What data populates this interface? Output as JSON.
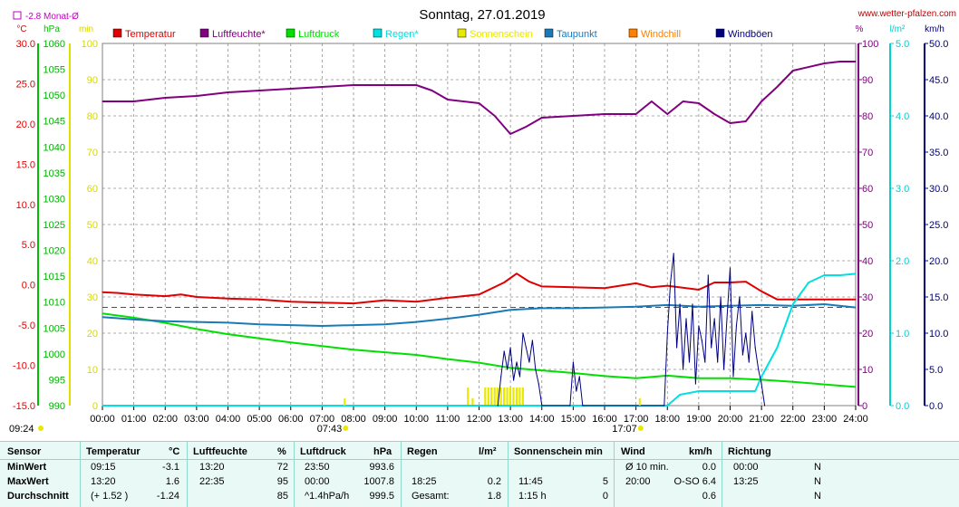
{
  "title": "Sonntag, 27.01.2019",
  "website": "www.wetter-pfalzen.com",
  "month_avg_label": "-2.8 Monat-Ø",
  "chart_data": {
    "type": "line",
    "x_range": [
      "00:00",
      "24:00"
    ],
    "x_ticks": [
      "00:00",
      "01:00",
      "02:00",
      "03:00",
      "04:00",
      "05:00",
      "06:00",
      "07:00",
      "08:00",
      "09:00",
      "10:00",
      "11:00",
      "12:00",
      "13:00",
      "14:00",
      "15:00",
      "16:00",
      "17:00",
      "18:00",
      "19:00",
      "20:00",
      "21:00",
      "22:00",
      "23:00",
      "24:00"
    ],
    "axes": {
      "temp": {
        "unit": "°C",
        "range": [
          -15,
          30
        ],
        "ticks": [
          "30.0",
          "25.0",
          "20.0",
          "15.0",
          "10.0",
          "5.0",
          "0.0",
          "-5.0",
          "-10.0",
          "-15.0"
        ],
        "color": "#e00000"
      },
      "pressure": {
        "unit": "hPa",
        "range": [
          990,
          1060
        ],
        "ticks": [
          "1060",
          "1055",
          "1050",
          "1045",
          "1040",
          "1035",
          "1030",
          "1025",
          "1020",
          "1015",
          "1010",
          "1005",
          "1000",
          "995",
          "990"
        ],
        "color": "#00c000"
      },
      "minutes": {
        "unit": "min",
        "range": [
          0,
          100
        ],
        "ticks": [
          "100",
          "90",
          "80",
          "70",
          "60",
          "50",
          "40",
          "30",
          "20",
          "10",
          "0"
        ],
        "color": "#e0e000"
      },
      "humidity": {
        "unit": "%",
        "range": [
          0,
          100
        ],
        "ticks": [
          "100",
          "90",
          "80",
          "70",
          "60",
          "50",
          "40",
          "30",
          "20",
          "10",
          "0"
        ],
        "color": "#800080"
      },
      "rain": {
        "unit": "l/m²",
        "range": [
          0,
          5
        ],
        "ticks": [
          "5.0",
          "4.0",
          "3.0",
          "2.0",
          "1.0",
          "0.0"
        ],
        "color": "#00e0e0"
      },
      "wind": {
        "unit": "km/h",
        "range": [
          0,
          50
        ],
        "ticks": [
          "50.0",
          "45.0",
          "40.0",
          "35.0",
          "30.0",
          "25.0",
          "20.0",
          "15.0",
          "10.0",
          "5.0",
          "0.0"
        ],
        "color": "#000080"
      }
    },
    "legend": [
      {
        "name": "Temperatur",
        "color": "#e00000"
      },
      {
        "name": "Luftfeuchte*",
        "color": "#800080"
      },
      {
        "name": "Luftdruck",
        "color": "#00e000"
      },
      {
        "name": "Regen*",
        "color": "#00e0e0"
      },
      {
        "name": "Sonnenschein",
        "color": "#e8e800"
      },
      {
        "name": "Taupunkt",
        "color": "#1a7ab8"
      },
      {
        "name": "Windchill",
        "color": "#ff8000"
      },
      {
        "name": "Windböen",
        "color": "#000080"
      }
    ],
    "month_avg_temp": -2.8,
    "series": [
      {
        "name": "Temperatur",
        "axis": "temp",
        "color": "#e00000",
        "x": [
          0,
          0.5,
          1,
          2,
          2.5,
          3,
          4,
          5,
          6,
          7,
          8,
          9,
          10,
          11,
          12,
          12.8,
          13.2,
          13.6,
          14,
          15,
          16,
          17,
          17.5,
          18,
          19,
          19.5,
          20,
          20.5,
          21,
          21.5,
          22,
          23,
          24
        ],
        "y": [
          -0.9,
          -1.0,
          -1.2,
          -1.4,
          -1.2,
          -1.5,
          -1.7,
          -1.8,
          -2.1,
          -2.2,
          -2.3,
          -1.9,
          -2.1,
          -1.6,
          -1.2,
          0.3,
          1.4,
          0.4,
          -0.2,
          -0.3,
          -0.4,
          0.2,
          -0.3,
          -0.1,
          -0.6,
          0.3,
          0.3,
          0.4,
          -0.8,
          -1.8,
          -1.8,
          -1.8,
          -1.8
        ]
      },
      {
        "name": "Luftfeuchte*",
        "axis": "humidity",
        "color": "#800080",
        "x": [
          0,
          1,
          2,
          3,
          4,
          5,
          6,
          7,
          8,
          9,
          10,
          10.5,
          11,
          12,
          12.5,
          13,
          13.5,
          14,
          15,
          16,
          17,
          17.5,
          18,
          18.5,
          19,
          19.5,
          20,
          20.5,
          21,
          21.5,
          22,
          23,
          23.5,
          24
        ],
        "y": [
          84,
          84,
          85,
          85.5,
          86.5,
          87,
          87.5,
          88,
          88.5,
          88.5,
          88.5,
          87,
          84.5,
          83.5,
          80,
          75,
          77,
          79.5,
          80,
          80.5,
          80.5,
          84,
          80.5,
          84,
          83.5,
          80.5,
          78,
          78.5,
          84,
          88,
          92.5,
          94.5,
          95,
          95
        ]
      },
      {
        "name": "Luftdruck",
        "axis": "pressure",
        "color": "#00e000",
        "x": [
          0,
          1,
          2,
          3,
          4,
          5,
          6,
          7,
          8,
          9,
          10,
          11,
          12,
          13,
          14,
          15,
          16,
          17,
          18,
          19,
          20,
          21,
          22,
          23,
          24
        ],
        "y": [
          1007.8,
          1007.0,
          1006.0,
          1004.8,
          1003.8,
          1003.0,
          1002.2,
          1001.5,
          1000.8,
          1000.3,
          999.8,
          999.0,
          998.3,
          997.3,
          996.8,
          996.3,
          995.7,
          995.3,
          995.8,
          995.3,
          995.3,
          995.0,
          994.6,
          994.1,
          993.6
        ]
      },
      {
        "name": "Taupunkt",
        "axis": "temp",
        "color": "#1a7ab8",
        "x": [
          0,
          1,
          2,
          3,
          4,
          5,
          6,
          7,
          8,
          9,
          10,
          11,
          12,
          13,
          14,
          15,
          16,
          17,
          18,
          19,
          20,
          21,
          22,
          23,
          24
        ],
        "y": [
          -4.0,
          -4.3,
          -4.5,
          -4.6,
          -4.7,
          -4.9,
          -5.0,
          -5.1,
          -5.0,
          -4.9,
          -4.6,
          -4.2,
          -3.7,
          -3.1,
          -2.9,
          -2.9,
          -2.8,
          -2.7,
          -2.5,
          -2.7,
          -2.6,
          -2.5,
          -2.6,
          -2.4,
          -2.8
        ]
      },
      {
        "name": "Regen*",
        "axis": "rain",
        "color": "#00e0e0",
        "x": [
          0,
          18,
          18.4,
          19,
          20,
          20.8,
          21,
          21.5,
          22,
          22.5,
          23,
          23.5,
          24
        ],
        "y": [
          0,
          0,
          0.15,
          0.2,
          0.2,
          0.2,
          0.4,
          0.8,
          1.4,
          1.7,
          1.8,
          1.8,
          1.82
        ]
      },
      {
        "name": "Windböen",
        "axis": "wind",
        "color": "#000080",
        "x": [
          12.6,
          12.7,
          12.8,
          12.9,
          13.0,
          13.1,
          13.2,
          13.3,
          13.4,
          13.5,
          13.6,
          13.7,
          13.8,
          13.9,
          14.0,
          14.9,
          15.0,
          15.1,
          15.2,
          15.3,
          17.9,
          18.0,
          18.1,
          18.2,
          18.3,
          18.4,
          18.5,
          18.6,
          18.7,
          18.8,
          18.9,
          19.0,
          19.1,
          19.2,
          19.3,
          19.4,
          19.5,
          19.6,
          19.7,
          19.8,
          19.9,
          20.0,
          20.1,
          20.2,
          20.3,
          20.4,
          20.5,
          20.6,
          20.7,
          20.8,
          20.9,
          21.0,
          21.1
        ],
        "y": [
          0,
          4,
          7.5,
          5,
          8,
          3.5,
          6,
          4,
          10,
          8,
          6,
          9,
          5,
          3,
          0,
          0,
          6,
          2,
          4,
          0,
          0,
          10,
          17,
          21,
          8,
          14,
          5,
          12,
          6,
          14,
          3,
          11,
          9,
          6,
          18,
          8,
          12,
          6,
          15,
          5,
          12,
          19,
          4,
          11,
          15,
          7,
          10,
          6,
          13,
          8,
          5,
          3,
          0
        ]
      }
    ],
    "sunshine": {
      "axis": "minutes",
      "color": "#e8e800",
      "bars": [
        {
          "x": 11.65,
          "y": 5
        },
        {
          "x": 11.8,
          "y": 2
        },
        {
          "x": 12.2,
          "y": 5
        },
        {
          "x": 12.3,
          "y": 5
        },
        {
          "x": 12.4,
          "y": 5
        },
        {
          "x": 12.5,
          "y": 5
        },
        {
          "x": 12.6,
          "y": 5
        },
        {
          "x": 12.7,
          "y": 5
        },
        {
          "x": 12.8,
          "y": 5
        },
        {
          "x": 12.9,
          "y": 5
        },
        {
          "x": 13.0,
          "y": 5
        },
        {
          "x": 13.1,
          "y": 5
        },
        {
          "x": 13.2,
          "y": 5
        },
        {
          "x": 13.3,
          "y": 5
        },
        {
          "x": 13.4,
          "y": 5
        }
      ]
    },
    "markers": [
      {
        "label": "09:24",
        "x": 9.4,
        "row": "left"
      },
      {
        "label": "07:43",
        "x": 7.72
      },
      {
        "label": "17:07",
        "x": 17.12
      }
    ]
  },
  "stats": {
    "headers": {
      "sensor": "Sensor",
      "temp": "Temperatur",
      "temp_unit": "°C",
      "hum": "Luftfeuchte",
      "hum_unit": "%",
      "press": "Luftdruck",
      "press_unit": "hPa",
      "rain": "Regen",
      "rain_unit": "l/m²",
      "sun": "Sonnenschein min",
      "wind": "Wind",
      "wind_unit": "km/h",
      "dir": "Richtung"
    },
    "rows": [
      {
        "label": "MinWert",
        "temp_time": "09:15",
        "temp_val": "-3.1",
        "hum_time": "13:20",
        "hum_val": "72",
        "press_time": "23:50",
        "press_val": "993.6",
        "rain_time": "",
        "rain_val": "",
        "sun_time": "",
        "sun_val": "",
        "wind_time": "Ø 10 min.",
        "wind_val": "0.0",
        "dir_time": "00:00",
        "dir_val": "N"
      },
      {
        "label": "MaxWert",
        "temp_time": "13:20",
        "temp_val": "1.6",
        "hum_time": "22:35",
        "hum_val": "95",
        "press_time": "00:00",
        "press_val": "1007.8",
        "rain_time": "18:25",
        "rain_val": "0.2",
        "sun_time": "11:45",
        "sun_val": "5",
        "wind_time": "20:00",
        "wind_val": "O-SO 6.4",
        "dir_time": "13:25",
        "dir_val": "N"
      },
      {
        "label": "Durchschnitt",
        "temp_time": "(+ 1.52 )",
        "temp_val": "-1.24",
        "hum_time": "",
        "hum_val": "85",
        "press_time": "^1.4hPa/h",
        "press_val": "999.5",
        "rain_time": "Gesamt:",
        "rain_val": "1.8",
        "sun_time": "1:15 h",
        "sun_val": "0",
        "wind_time": "",
        "wind_val": "0.6",
        "dir_time": "",
        "dir_val": "N"
      }
    ]
  }
}
